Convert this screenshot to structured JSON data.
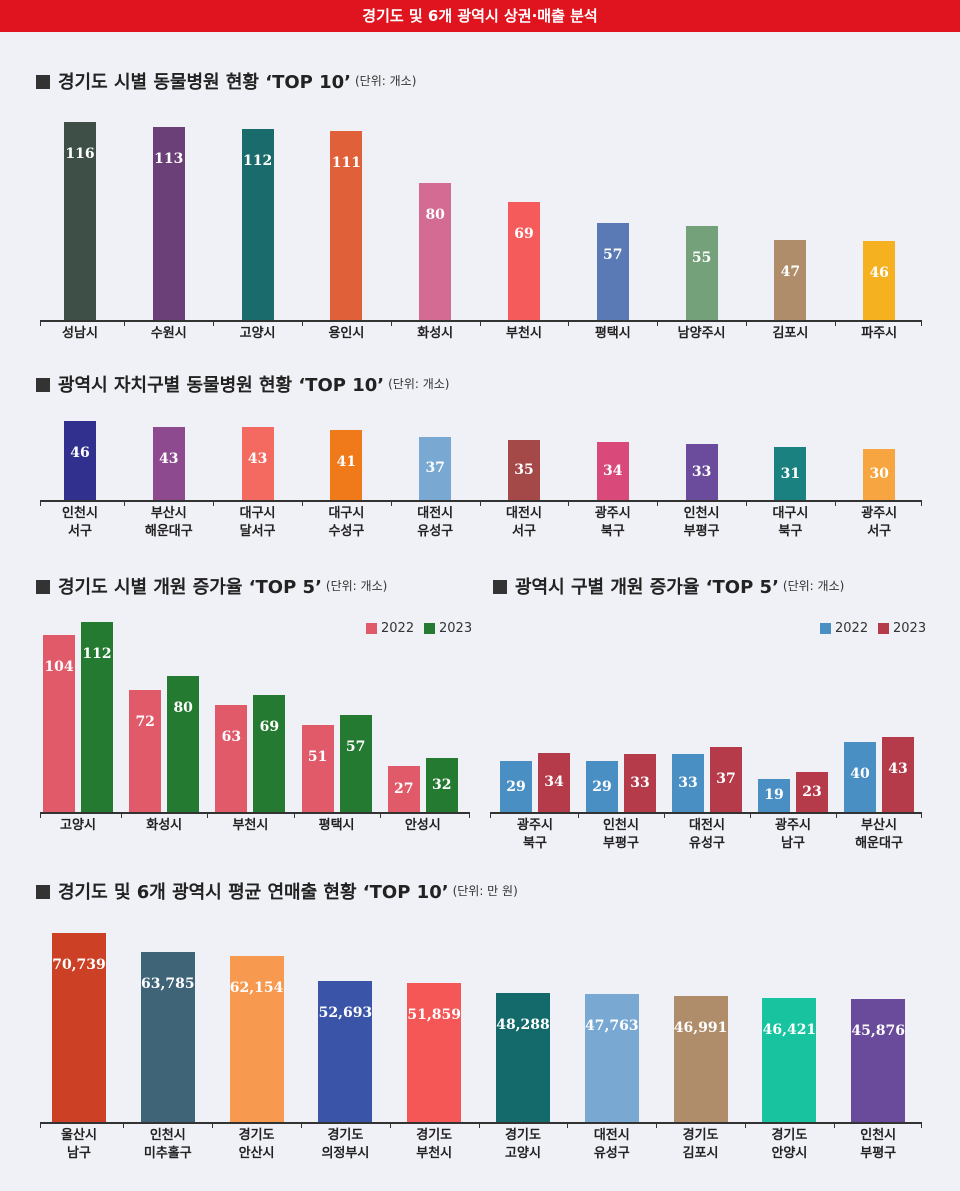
{
  "header": {
    "title": "경기도 및 6개 광역시 상권·매출 분석"
  },
  "chart_data": [
    {
      "type": "bar",
      "title": "경기도 시별 동물병원 현황 ‘TOP 10’",
      "subtitle": "(단위: 개소)",
      "categories": [
        "성남시",
        "수원시",
        "고양시",
        "용인시",
        "화성시",
        "부천시",
        "평택시",
        "남양주시",
        "김포시",
        "파주시"
      ],
      "values": [
        116,
        113,
        112,
        111,
        80,
        69,
        57,
        55,
        47,
        46
      ],
      "colors": [
        "#3d4f47",
        "#6b3f77",
        "#1a6b6b",
        "#e0603a",
        "#d36b92",
        "#f55b5b",
        "#5a7ab5",
        "#74a07a",
        "#b08d6a",
        "#f5b120"
      ]
    },
    {
      "type": "bar",
      "title": "광역시 자치구별 동물병원 현황 ‘TOP 10’",
      "subtitle": "(단위: 개소)",
      "categories": [
        "인천시\n서구",
        "부산시\n해운대구",
        "대구시\n달서구",
        "대구시\n수성구",
        "대전시\n유성구",
        "대전시\n서구",
        "광주시\n북구",
        "인천시\n부평구",
        "대구시\n북구",
        "광주시\n서구"
      ],
      "values": [
        46,
        43,
        43,
        41,
        37,
        35,
        34,
        33,
        31,
        30
      ],
      "colors": [
        "#32308f",
        "#8e4a8e",
        "#f46a60",
        "#f07a1a",
        "#79a9d3",
        "#a54848",
        "#d94a7b",
        "#6b4b9b",
        "#1a8080",
        "#f7a540"
      ]
    },
    {
      "type": "grouped_bar",
      "title": "경기도 시별 개원 증가율 ‘TOP 5’",
      "subtitle": "(단위: 개소)",
      "categories": [
        "고양시",
        "화성시",
        "부천시",
        "평택시",
        "안성시"
      ],
      "series": [
        {
          "name": "2022",
          "color": "#e05a6a",
          "values": [
            104,
            72,
            63,
            51,
            27
          ]
        },
        {
          "name": "2023",
          "color": "#237a30",
          "values": [
            112,
            80,
            69,
            57,
            32
          ]
        }
      ]
    },
    {
      "type": "grouped_bar",
      "title": "광역시 구별 개원 증가율 ‘TOP 5’",
      "subtitle": "(단위: 개소)",
      "categories": [
        "광주시\n북구",
        "인천시\n부평구",
        "대전시\n유성구",
        "광주시\n남구",
        "부산시\n해운대구"
      ],
      "series": [
        {
          "name": "2022",
          "color": "#4a8fc4",
          "values": [
            29,
            29,
            33,
            19,
            40
          ]
        },
        {
          "name": "2023",
          "color": "#b53a4a",
          "values": [
            34,
            33,
            37,
            23,
            43
          ]
        }
      ]
    },
    {
      "type": "bar",
      "title": "경기도 및 6개 광역시 평균 연매출 현황 ‘TOP 10’",
      "subtitle": "(단위: 만 원)",
      "categories": [
        "울산시\n남구",
        "인천시\n미추홀구",
        "경기도\n안산시",
        "경기도\n의정부시",
        "경기도\n부천시",
        "경기도\n고양시",
        "대전시\n유성구",
        "경기도\n김포시",
        "경기도\n안양시",
        "인천시\n부평구"
      ],
      "values": [
        70739,
        63785,
        62154,
        52693,
        51859,
        48288,
        47763,
        46991,
        46421,
        45876
      ],
      "value_labels": [
        "70,739",
        "63,785",
        "62,154",
        "52,693",
        "51,859",
        "48,288",
        "47,763",
        "46,991",
        "46,421",
        "45,876"
      ],
      "colors": [
        "#cc4125",
        "#3f6478",
        "#f79a50",
        "#3a55a8",
        "#f55656",
        "#146a6a",
        "#79a9d3",
        "#b08d6a",
        "#18c4a0",
        "#6a4a9a"
      ]
    }
  ]
}
